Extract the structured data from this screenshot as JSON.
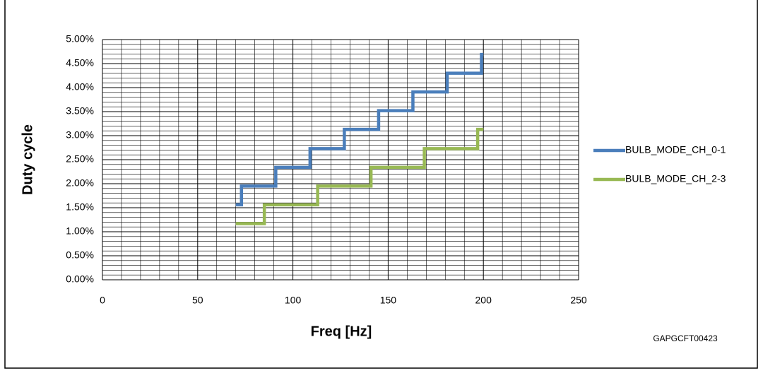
{
  "chart_data": {
    "type": "line",
    "x_label": "Freq [Hz]",
    "y_label": "Duty cycle",
    "annotation": "GAPGCFT00423",
    "xlim": [
      0,
      250
    ],
    "xticks": [
      0,
      50,
      100,
      150,
      200,
      250
    ],
    "ylim": [
      0,
      5
    ],
    "yticks": [
      {
        "value": 0,
        "label": "0.00%"
      },
      {
        "value": 0.5,
        "label": "0.50%"
      },
      {
        "value": 1,
        "label": "1.00%"
      },
      {
        "value": 1.5,
        "label": "1.50%"
      },
      {
        "value": 2,
        "label": "2.00%"
      },
      {
        "value": 2.5,
        "label": "2.50%"
      },
      {
        "value": 3,
        "label": "3.00%"
      },
      {
        "value": 3.5,
        "label": "3.50%"
      },
      {
        "value": 4,
        "label": "4.00%"
      },
      {
        "value": 4.5,
        "label": "4.50%"
      },
      {
        "value": 5,
        "label": "5.00%"
      }
    ],
    "x_grid": [
      10,
      20,
      30,
      40,
      60,
      70,
      80,
      90,
      110,
      120,
      130,
      140,
      160,
      170,
      180,
      190,
      210,
      220,
      230,
      240
    ],
    "y_grid": [
      0.1,
      0.2,
      0.3,
      0.4,
      0.6,
      0.7,
      0.8,
      0.9,
      1.1,
      1.2,
      1.3,
      1.4,
      1.6,
      1.7,
      1.8,
      1.9,
      2.1,
      2.2,
      2.3,
      2.4,
      2.6,
      2.7,
      2.8,
      2.9,
      3.1,
      3.2,
      3.3,
      3.4,
      3.6,
      3.7,
      3.8,
      3.9,
      4.1,
      4.2,
      4.3,
      4.4,
      4.6,
      4.7,
      4.8,
      4.9
    ],
    "grid": true,
    "legend": "right",
    "series": [
      {
        "name": "BULB_MODE_CH_0-1",
        "color": "#4a7ebb",
        "x": [
          70,
          73,
          73,
          91,
          91,
          109,
          109,
          127,
          127,
          145,
          145,
          163,
          163,
          181,
          181,
          199,
          199,
          200
        ],
        "values": [
          1.56,
          1.56,
          1.95,
          1.95,
          2.34,
          2.34,
          2.73,
          2.73,
          3.13,
          3.13,
          3.52,
          3.52,
          3.91,
          3.91,
          4.3,
          4.3,
          4.69,
          4.69
        ]
      },
      {
        "name": "BULB_MODE_CH_2-3",
        "color": "#98b954",
        "x": [
          70,
          85,
          85,
          113,
          113,
          141,
          141,
          169,
          169,
          197,
          197,
          200
        ],
        "values": [
          1.17,
          1.17,
          1.56,
          1.56,
          1.95,
          1.95,
          2.34,
          2.34,
          2.73,
          2.73,
          3.13,
          3.13
        ]
      }
    ]
  }
}
